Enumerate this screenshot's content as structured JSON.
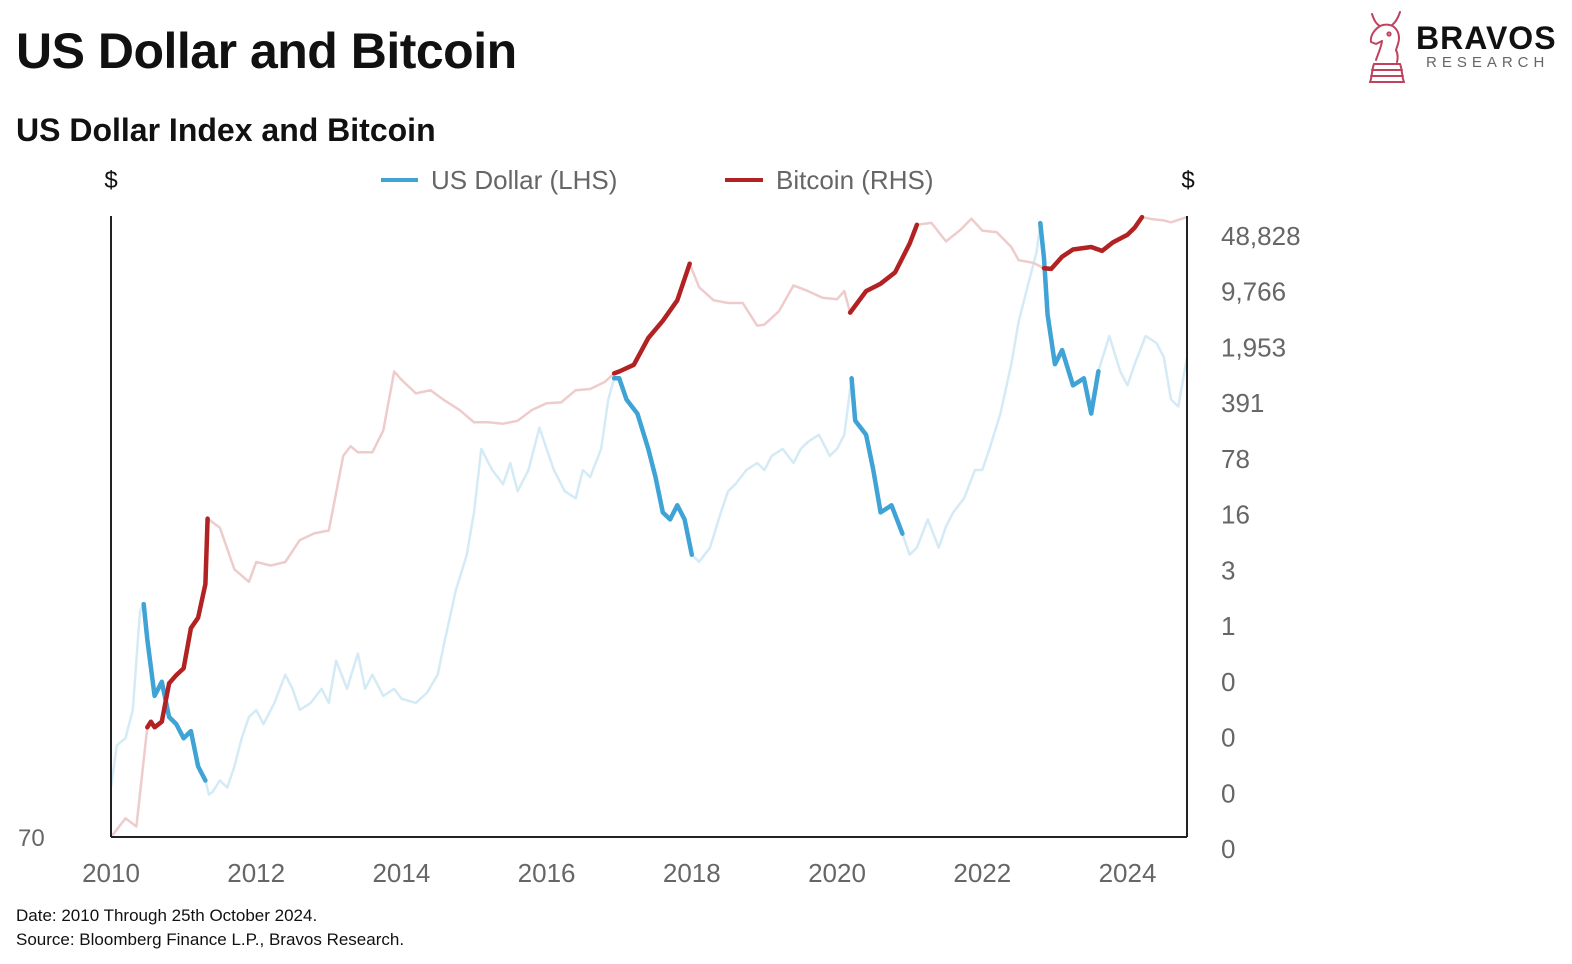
{
  "header": {
    "title": "US Dollar and Bitcoin",
    "subtitle": "US Dollar Index and Bitcoin"
  },
  "logo": {
    "name": "BRAVOS",
    "tagline": "RESEARCH",
    "icon": "knight-chess-piece-icon",
    "color": "#c0425e"
  },
  "footer": {
    "date_note": "Date: 2010 Through 25th October 2024.",
    "source_note": "Source: Bloomberg Finance L.P., Bravos Research."
  },
  "chart_data": {
    "type": "line",
    "left_axis": {
      "unit_label": "$",
      "tick_labels": [
        "70"
      ]
    },
    "right_axis": {
      "unit_label": "$",
      "scale": "log",
      "tick_labels": [
        "48,828",
        "9,766",
        "1,953",
        "391",
        "78",
        "16",
        "3",
        "1",
        "0",
        "0",
        "0",
        "0"
      ]
    },
    "x_axis": {
      "tick_labels": [
        "2010",
        "2012",
        "2014",
        "2016",
        "2018",
        "2020",
        "2022",
        "2024"
      ],
      "range": [
        2010,
        2024.82
      ]
    },
    "legend": {
      "placement": "top-center"
    },
    "grid": false,
    "series": [
      {
        "name": "US Dollar (LHS)",
        "axis": "left",
        "color": "#3fa3d6",
        "faded_color": "#d4ebf6",
        "points": [
          [
            2010.0,
            73.5
          ],
          [
            2010.08,
            76.5
          ],
          [
            2010.2,
            77.0
          ],
          [
            2010.3,
            79.0
          ],
          [
            2010.4,
            86.0
          ],
          [
            2010.45,
            86.5
          ],
          [
            2010.5,
            84.0
          ],
          [
            2010.6,
            80.0
          ],
          [
            2010.7,
            81.0
          ],
          [
            2010.8,
            78.5
          ],
          [
            2010.9,
            78.0
          ],
          [
            2011.0,
            77.0
          ],
          [
            2011.1,
            77.5
          ],
          [
            2011.2,
            75.0
          ],
          [
            2011.3,
            74.0
          ],
          [
            2011.35,
            73.0
          ],
          [
            2011.4,
            73.2
          ],
          [
            2011.5,
            74.0
          ],
          [
            2011.6,
            73.5
          ],
          [
            2011.7,
            75.0
          ],
          [
            2011.8,
            77.0
          ],
          [
            2011.9,
            78.5
          ],
          [
            2012.0,
            79.0
          ],
          [
            2012.1,
            78.0
          ],
          [
            2012.25,
            79.5
          ],
          [
            2012.4,
            81.5
          ],
          [
            2012.5,
            80.5
          ],
          [
            2012.6,
            79.0
          ],
          [
            2012.75,
            79.5
          ],
          [
            2012.9,
            80.5
          ],
          [
            2013.0,
            79.5
          ],
          [
            2013.1,
            82.5
          ],
          [
            2013.25,
            80.5
          ],
          [
            2013.4,
            83.0
          ],
          [
            2013.5,
            80.5
          ],
          [
            2013.6,
            81.5
          ],
          [
            2013.75,
            80.0
          ],
          [
            2013.9,
            80.5
          ],
          [
            2014.0,
            79.8
          ],
          [
            2014.2,
            79.5
          ],
          [
            2014.35,
            80.2
          ],
          [
            2014.5,
            81.5
          ],
          [
            2014.6,
            84.0
          ],
          [
            2014.75,
            87.5
          ],
          [
            2014.9,
            90.0
          ],
          [
            2015.0,
            93.0
          ],
          [
            2015.1,
            97.5
          ],
          [
            2015.25,
            96.0
          ],
          [
            2015.4,
            95.0
          ],
          [
            2015.5,
            96.5
          ],
          [
            2015.6,
            94.5
          ],
          [
            2015.75,
            96.0
          ],
          [
            2015.9,
            99.0
          ],
          [
            2016.0,
            97.5
          ],
          [
            2016.1,
            96.0
          ],
          [
            2016.25,
            94.5
          ],
          [
            2016.4,
            94.0
          ],
          [
            2016.5,
            96.0
          ],
          [
            2016.6,
            95.5
          ],
          [
            2016.75,
            97.5
          ],
          [
            2016.85,
            101.0
          ],
          [
            2016.93,
            102.5
          ],
          [
            2017.0,
            102.5
          ],
          [
            2017.1,
            101.0
          ],
          [
            2017.25,
            100.0
          ],
          [
            2017.4,
            97.5
          ],
          [
            2017.5,
            95.5
          ],
          [
            2017.6,
            93.0
          ],
          [
            2017.7,
            92.5
          ],
          [
            2017.8,
            93.5
          ],
          [
            2017.9,
            92.5
          ],
          [
            2018.0,
            90.0
          ],
          [
            2018.1,
            89.5
          ],
          [
            2018.25,
            90.5
          ],
          [
            2018.4,
            93.0
          ],
          [
            2018.5,
            94.5
          ],
          [
            2018.6,
            95.0
          ],
          [
            2018.75,
            96.0
          ],
          [
            2018.9,
            96.5
          ],
          [
            2019.0,
            96.0
          ],
          [
            2019.1,
            97.0
          ],
          [
            2019.25,
            97.5
          ],
          [
            2019.4,
            96.5
          ],
          [
            2019.5,
            97.5
          ],
          [
            2019.6,
            98.0
          ],
          [
            2019.75,
            98.5
          ],
          [
            2019.9,
            97.0
          ],
          [
            2020.0,
            97.5
          ],
          [
            2020.1,
            98.5
          ],
          [
            2020.2,
            102.5
          ],
          [
            2020.25,
            99.5
          ],
          [
            2020.4,
            98.5
          ],
          [
            2020.5,
            96.0
          ],
          [
            2020.6,
            93.0
          ],
          [
            2020.75,
            93.5
          ],
          [
            2020.9,
            91.5
          ],
          [
            2021.0,
            90.0
          ],
          [
            2021.1,
            90.5
          ],
          [
            2021.25,
            92.5
          ],
          [
            2021.4,
            90.5
          ],
          [
            2021.5,
            92.0
          ],
          [
            2021.6,
            93.0
          ],
          [
            2021.75,
            94.0
          ],
          [
            2021.9,
            96.0
          ],
          [
            2022.0,
            96.0
          ],
          [
            2022.1,
            97.5
          ],
          [
            2022.25,
            100.0
          ],
          [
            2022.4,
            103.5
          ],
          [
            2022.5,
            106.5
          ],
          [
            2022.6,
            108.5
          ],
          [
            2022.75,
            111.5
          ],
          [
            2022.8,
            113.5
          ],
          [
            2022.85,
            111.0
          ],
          [
            2022.9,
            107.0
          ],
          [
            2023.0,
            103.5
          ],
          [
            2023.1,
            104.5
          ],
          [
            2023.25,
            102.0
          ],
          [
            2023.4,
            102.5
          ],
          [
            2023.5,
            100.0
          ],
          [
            2023.6,
            103.0
          ],
          [
            2023.75,
            105.5
          ],
          [
            2023.9,
            103.0
          ],
          [
            2024.0,
            102.0
          ],
          [
            2024.1,
            103.5
          ],
          [
            2024.25,
            105.5
          ],
          [
            2024.4,
            105.0
          ],
          [
            2024.5,
            104.0
          ],
          [
            2024.6,
            101.0
          ],
          [
            2024.7,
            100.5
          ],
          [
            2024.82,
            104.0
          ]
        ],
        "highlight_ranges": [
          [
            2010.45,
            2011.33
          ],
          [
            2016.93,
            2018.03
          ],
          [
            2020.18,
            2020.97
          ],
          [
            2022.8,
            2023.6
          ]
        ]
      },
      {
        "name": "Bitcoin (RHS)",
        "axis": "right",
        "color": "#b22222",
        "faded_color": "#efcccc",
        "points": [
          [
            2010.0,
            0.003
          ],
          [
            2010.2,
            0.005
          ],
          [
            2010.35,
            0.004
          ],
          [
            2010.5,
            0.06
          ],
          [
            2010.55,
            0.07
          ],
          [
            2010.6,
            0.06
          ],
          [
            2010.7,
            0.07
          ],
          [
            2010.8,
            0.2
          ],
          [
            2010.9,
            0.25
          ],
          [
            2011.0,
            0.3
          ],
          [
            2011.1,
            0.9
          ],
          [
            2011.2,
            1.2
          ],
          [
            2011.3,
            3.0
          ],
          [
            2011.33,
            18.0
          ],
          [
            2011.5,
            14.0
          ],
          [
            2011.7,
            4.5
          ],
          [
            2011.9,
            3.2
          ],
          [
            2012.0,
            5.5
          ],
          [
            2012.2,
            5.0
          ],
          [
            2012.4,
            5.5
          ],
          [
            2012.6,
            10.0
          ],
          [
            2012.8,
            12.0
          ],
          [
            2013.0,
            13.0
          ],
          [
            2013.2,
            100.0
          ],
          [
            2013.3,
            130.0
          ],
          [
            2013.4,
            110.0
          ],
          [
            2013.6,
            110.0
          ],
          [
            2013.75,
            200.0
          ],
          [
            2013.9,
            1000.0
          ],
          [
            2014.0,
            800.0
          ],
          [
            2014.2,
            550.0
          ],
          [
            2014.4,
            600.0
          ],
          [
            2014.6,
            450.0
          ],
          [
            2014.8,
            350.0
          ],
          [
            2015.0,
            250.0
          ],
          [
            2015.2,
            250.0
          ],
          [
            2015.4,
            240.0
          ],
          [
            2015.6,
            260.0
          ],
          [
            2015.8,
            350.0
          ],
          [
            2016.0,
            420.0
          ],
          [
            2016.2,
            430.0
          ],
          [
            2016.4,
            600.0
          ],
          [
            2016.6,
            620.0
          ],
          [
            2016.8,
            750.0
          ],
          [
            2016.93,
            950.0
          ],
          [
            2017.0,
            1000.0
          ],
          [
            2017.2,
            1200.0
          ],
          [
            2017.4,
            2500.0
          ],
          [
            2017.6,
            4000.0
          ],
          [
            2017.8,
            7000.0
          ],
          [
            2017.97,
            19000.0
          ],
          [
            2018.1,
            10000.0
          ],
          [
            2018.3,
            7000.0
          ],
          [
            2018.5,
            6500.0
          ],
          [
            2018.7,
            6500.0
          ],
          [
            2018.9,
            3500.0
          ],
          [
            2019.0,
            3600.0
          ],
          [
            2019.2,
            5200.0
          ],
          [
            2019.4,
            10500.0
          ],
          [
            2019.6,
            9000.0
          ],
          [
            2019.8,
            7500.0
          ],
          [
            2020.0,
            7200.0
          ],
          [
            2020.1,
            9000.0
          ],
          [
            2020.18,
            5000.0
          ],
          [
            2020.4,
            9000.0
          ],
          [
            2020.6,
            11000.0
          ],
          [
            2020.8,
            15000.0
          ],
          [
            2021.0,
            33000.0
          ],
          [
            2021.1,
            55000.0
          ],
          [
            2021.3,
            58000.0
          ],
          [
            2021.5,
            35000.0
          ],
          [
            2021.7,
            48000.0
          ],
          [
            2021.85,
            65000.0
          ],
          [
            2022.0,
            47000.0
          ],
          [
            2022.2,
            45000.0
          ],
          [
            2022.4,
            30000.0
          ],
          [
            2022.5,
            21000.0
          ],
          [
            2022.7,
            19500.0
          ],
          [
            2022.85,
            16800.0
          ],
          [
            2022.95,
            16500.0
          ],
          [
            2023.1,
            23000.0
          ],
          [
            2023.25,
            28000.0
          ],
          [
            2023.5,
            30000.0
          ],
          [
            2023.65,
            27000.0
          ],
          [
            2023.8,
            34000.0
          ],
          [
            2024.0,
            42000.0
          ],
          [
            2024.1,
            51000.0
          ],
          [
            2024.2,
            68000.0
          ],
          [
            2024.35,
            64000.0
          ],
          [
            2024.5,
            62000.0
          ],
          [
            2024.6,
            59000.0
          ],
          [
            2024.7,
            63000.0
          ],
          [
            2024.82,
            68000.0
          ]
        ],
        "highlight_ranges": [
          [
            2010.5,
            2011.45
          ],
          [
            2016.93,
            2017.97
          ],
          [
            2020.18,
            2021.12
          ],
          [
            2022.85,
            2024.2
          ]
        ]
      }
    ]
  }
}
